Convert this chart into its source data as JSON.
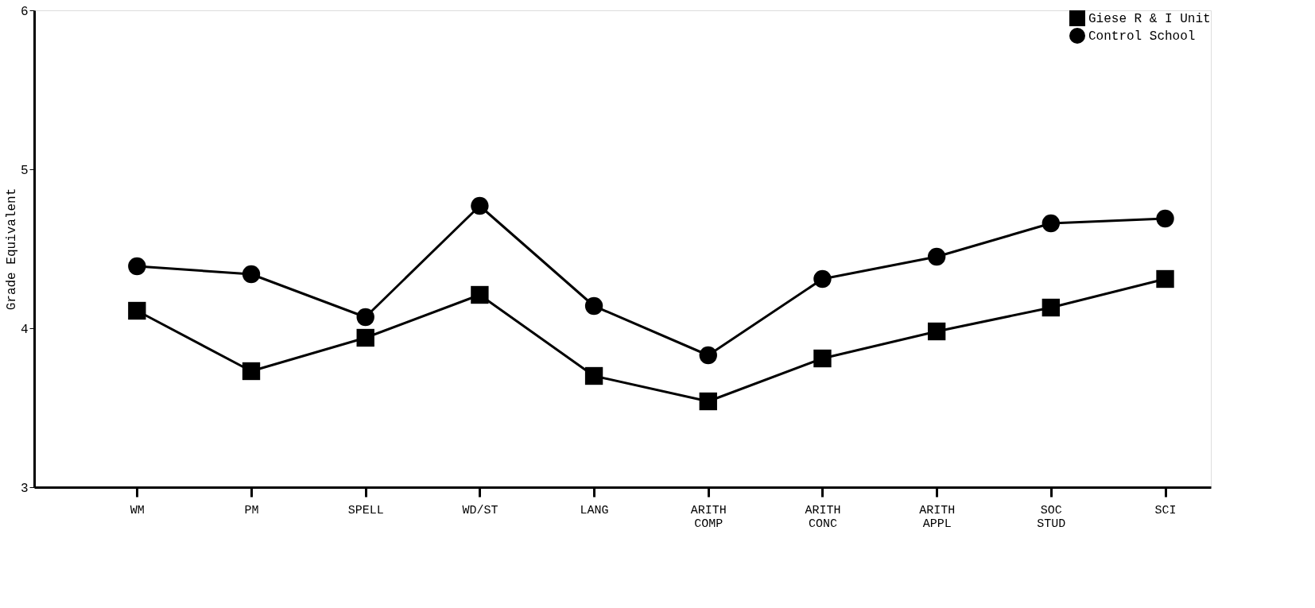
{
  "chart_data": {
    "type": "line",
    "ylabel": "Grade Equivalent",
    "categories": [
      "WM",
      "PM",
      "SPELL",
      "WD/ST",
      "LANG",
      "ARITH COMP",
      "ARITH CONC",
      "ARITH APPL",
      "SOC STUD",
      "SCI"
    ],
    "series": [
      {
        "name": "Giese R & I Unit",
        "color": "#000000",
        "marker": "square",
        "values": [
          4.11,
          3.73,
          3.94,
          4.21,
          3.7,
          3.54,
          3.81,
          3.98,
          4.13,
          4.31
        ]
      },
      {
        "name": "Control School",
        "color": "#000000",
        "marker": "circle",
        "values": [
          4.39,
          4.34,
          4.07,
          4.77,
          4.14,
          3.83,
          4.31,
          4.45,
          4.66,
          4.69
        ]
      }
    ],
    "ylim": [
      3,
      6
    ],
    "yticks": [
      3,
      4,
      5,
      6
    ],
    "grid": false,
    "legend": "top right",
    "line_style": "solid"
  }
}
